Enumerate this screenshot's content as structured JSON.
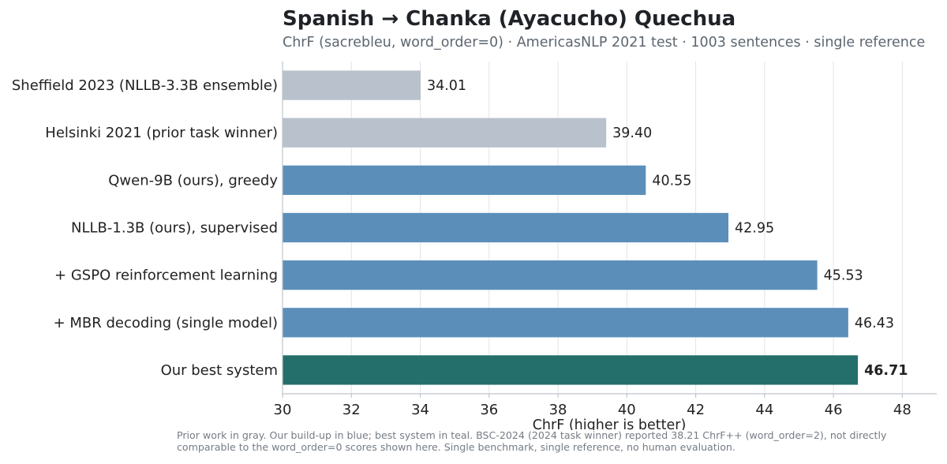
{
  "chart_data": {
    "type": "bar",
    "orientation": "horizontal",
    "title": "Spanish → Chanka (Ayacucho) Quechua",
    "subtitle": "ChrF (sacrebleu, word_order=0) · AmericasNLP 2021 test · 1003 sentences · single reference",
    "xlabel": "ChrF (higher is better)",
    "ylabel": "",
    "xlim": [
      30,
      49
    ],
    "xticks": [
      30,
      32,
      34,
      36,
      38,
      40,
      42,
      44,
      46,
      48
    ],
    "grid": "vertical",
    "categories": [
      "Sheffield 2023  (NLLB-3.3B ensemble)",
      "Helsinki 2021  (prior task winner)",
      "Qwen-9B (ours), greedy",
      "NLLB-1.3B (ours), supervised",
      "+ GSPO reinforcement learning",
      "+ MBR decoding (single model)",
      "Our best system"
    ],
    "values": [
      34.01,
      39.4,
      40.55,
      42.95,
      45.53,
      46.43,
      46.71
    ],
    "value_labels": [
      "34.01",
      "39.40",
      "40.55",
      "42.95",
      "45.53",
      "46.43",
      "46.71"
    ],
    "bar_groups": [
      "prior",
      "prior",
      "ours",
      "ours",
      "ours",
      "ours",
      "best"
    ],
    "colors": {
      "prior": "#b8c1cc",
      "ours": "#5b8fba",
      "best": "#246e6b"
    },
    "footnote": [
      "Prior work in gray. Our build-up in blue; best system in teal. BSC-2024 (2024 task winner) reported 38.21 ChrF++ (word_order=2), not directly",
      "comparable to the word_order=0 scores shown here. Single benchmark, single reference, no human evaluation."
    ]
  }
}
